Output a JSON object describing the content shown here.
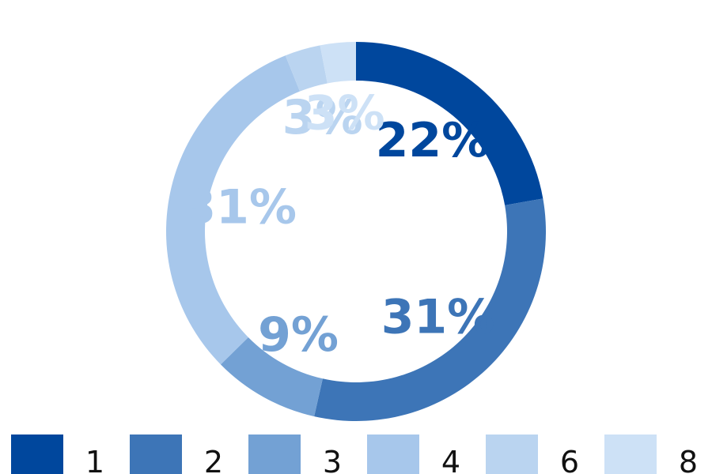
{
  "chart_data": {
    "type": "pie",
    "variant": "donut",
    "slices": [
      {
        "label": "1",
        "value": 22,
        "value_label": "22%",
        "color": "#00479d"
      },
      {
        "label": "2",
        "value": 31,
        "value_label": "31%",
        "color": "#3d75b7"
      },
      {
        "label": "3",
        "value": 9,
        "value_label": "9%",
        "color": "#73a1d4"
      },
      {
        "label": "4",
        "value": 31,
        "value_label": "31%",
        "color": "#a7c7eb"
      },
      {
        "label": "6",
        "value": 3,
        "value_label": "3%",
        "color": "#bad4f0"
      },
      {
        "label": "8",
        "value": 3,
        "value_label": "3%",
        "color": "#cde1f6"
      }
    ],
    "legend": {
      "position": "bottom"
    }
  }
}
